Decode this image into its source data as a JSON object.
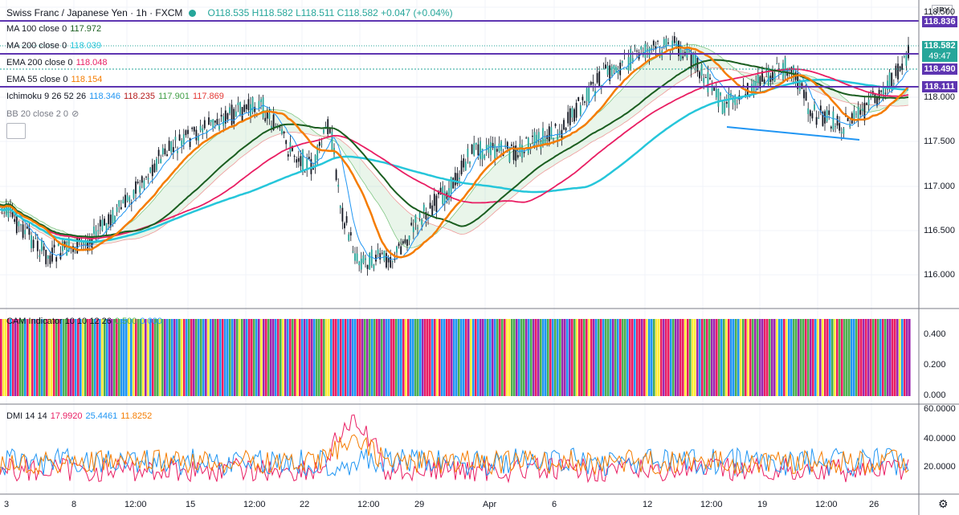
{
  "header": {
    "symbol": "Swiss Franc / Japanese Yen · 1h · FXCM",
    "ohlc": "O118.535 H118.582 L118.511 C118.582 +0.047 (+0.04%)",
    "currency": "JPY"
  },
  "studies": [
    {
      "label": "MA 100 close 0",
      "value": "117.972",
      "color": "#1b5e20"
    },
    {
      "label": "MA 200 close 0",
      "value": "118.039",
      "color": "#26c6da"
    },
    {
      "label": "EMA 200 close 0",
      "value": "118.048",
      "color": "#e91e63"
    },
    {
      "label": "EMA 55 close 0",
      "value": "118.154",
      "color": "#f57c00"
    }
  ],
  "ichimoku": {
    "label": "Ichimoku 9 26 52 26",
    "v1": "118.346",
    "v2": "118.235",
    "v3": "117.901",
    "v4": "117.869"
  },
  "bb": {
    "label": "BB 20 close 2 0"
  },
  "cam": {
    "label": "CAM Indicator 10 10 12 26",
    "v1": "0.500",
    "v2": "0.000"
  },
  "dmi": {
    "label": "DMI 14 14",
    "v1": "17.9920",
    "v2": "25.4461",
    "v3": "11.8252"
  },
  "price_axis": {
    "ticks": [
      "118.000",
      "117.500",
      "117.000",
      "116.500",
      "116.000"
    ],
    "top_tick": "118.500",
    "badges": {
      "r1": "118.836",
      "last": "118.582",
      "timer": "49:47",
      "r2": "118.490",
      "r3": "118.111"
    }
  },
  "cam_axis": {
    "ticks": [
      "0.400",
      "0.200",
      "0.000"
    ]
  },
  "dmi_axis": {
    "ticks": [
      "60.0000",
      "40.0000",
      "20.0000"
    ]
  },
  "time_axis": {
    "labels": [
      "3",
      "8",
      "12:00",
      "15",
      "12:00",
      "22",
      "12:00",
      "29",
      "Apr",
      "6",
      "12",
      "12:00",
      "19",
      "12:00",
      "26"
    ]
  },
  "colors": {
    "up": "#26a69a",
    "candle": "#131722",
    "resistance": "#5e35b1",
    "trendline": "#2196f3",
    "ma100": "#1b5e20",
    "ma200": "#26c6da",
    "ema200": "#e91e63",
    "ema55": "#f57c00"
  }
}
